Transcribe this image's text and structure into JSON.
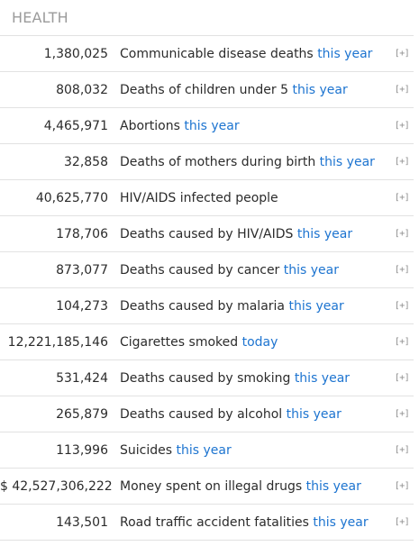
{
  "section": {
    "title": "HEALTH"
  },
  "rows": [
    {
      "value": "1,380,025",
      "label": "Communicable disease deaths",
      "period": "this year",
      "expand": "[+]"
    },
    {
      "value": "808,032",
      "label": "Deaths of children under 5",
      "period": "this year",
      "expand": "[+]"
    },
    {
      "value": "4,465,971",
      "label": "Abortions",
      "period": "this year",
      "expand": "[+]"
    },
    {
      "value": "32,858",
      "label": "Deaths of mothers during birth",
      "period": "this year",
      "expand": "[+]"
    },
    {
      "value": "40,625,770",
      "label": "HIV/AIDS infected people",
      "period": "",
      "expand": "[+]"
    },
    {
      "value": "178,706",
      "label": "Deaths caused by HIV/AIDS",
      "period": "this year",
      "expand": "[+]"
    },
    {
      "value": "873,077",
      "label": "Deaths caused by cancer",
      "period": "this year",
      "expand": "[+]"
    },
    {
      "value": "104,273",
      "label": "Deaths caused by malaria",
      "period": "this year",
      "expand": "[+]"
    },
    {
      "value": "12,221,185,146",
      "label": "Cigarettes smoked",
      "period": "today",
      "expand": "[+]"
    },
    {
      "value": "531,424",
      "label": "Deaths caused by smoking",
      "period": "this year",
      "expand": "[+]"
    },
    {
      "value": "265,879",
      "label": "Deaths caused by alcohol",
      "period": "this year",
      "expand": "[+]"
    },
    {
      "value": "113,996",
      "label": "Suicides",
      "period": "this year",
      "expand": "[+]"
    },
    {
      "value": "$ 42,527,306,222",
      "label": "Money spent on illegal drugs",
      "period": "this year",
      "expand": "[+]"
    },
    {
      "value": "143,501",
      "label": "Road traffic accident fatalities",
      "period": "this year",
      "expand": "[+]"
    }
  ],
  "colors": {
    "title": "#9b9b9b",
    "text": "#2b2b2b",
    "link": "#1d74d0",
    "divider": "#e2e2e2",
    "expand": "#8f8f8f"
  }
}
